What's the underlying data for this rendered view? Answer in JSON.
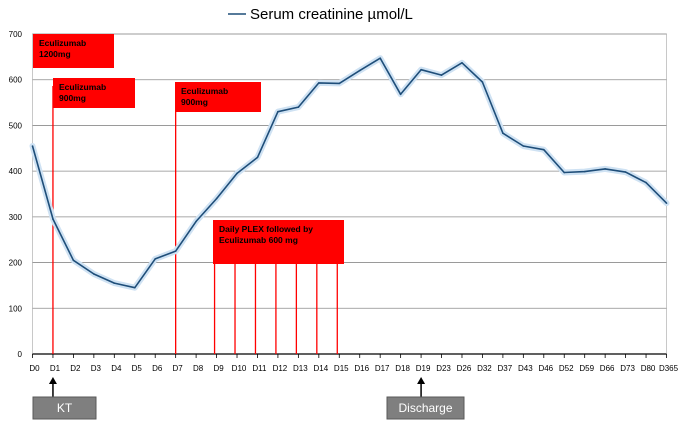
{
  "chart_data": {
    "type": "line",
    "title": "",
    "xlabel": "",
    "ylabel": "",
    "ylim": [
      0,
      700
    ],
    "yticks": [
      0,
      100,
      200,
      300,
      400,
      500,
      600,
      700
    ],
    "grid": "horizontal",
    "legend_position": "top",
    "categories": [
      "D0",
      "D1",
      "D2",
      "D3",
      "D4",
      "D5",
      "D6",
      "D7",
      "D8",
      "D9",
      "D10",
      "D11",
      "D12",
      "D13",
      "D14",
      "D15",
      "D16",
      "D17",
      "D18",
      "D19",
      "D23",
      "D26",
      "D32",
      "D37",
      "D43",
      "D46",
      "D52",
      "D59",
      "D66",
      "D73",
      "D80",
      "D365"
    ],
    "series": [
      {
        "name": "Serum creatinine µmol/L",
        "color": "#1f4e79",
        "values": [
          455,
          295,
          205,
          175,
          155,
          145,
          208,
          225,
          290,
          340,
          395,
          430,
          530,
          540,
          593,
          592,
          620,
          647,
          568,
          622,
          610,
          637,
          595,
          483,
          455,
          447,
          397,
          399,
          405,
          398,
          375,
          330
        ]
      }
    ],
    "annotations": [
      {
        "category": "D1",
        "color": "#ff0000",
        "lines": [
          "Eculizumab",
          "1200mg"
        ]
      },
      {
        "category": "D1",
        "color": "#ff0000",
        "lines": [
          "Eculizumab",
          "900mg"
        ]
      },
      {
        "category": "D7",
        "color": "#ff0000",
        "lines": [
          "Eculizumab",
          "900mg"
        ]
      },
      {
        "category": "D9",
        "color": "#ff0000",
        "lines": [
          "Daily PLEX followed by",
          "Eculizumab 600 mg"
        ],
        "marks": [
          "D9",
          "D10",
          "D11",
          "D12",
          "D13",
          "D14",
          "D15"
        ]
      }
    ],
    "markers": [
      {
        "category": "D1",
        "label": "KT"
      },
      {
        "category": "D19",
        "label": "Discharge"
      }
    ]
  }
}
